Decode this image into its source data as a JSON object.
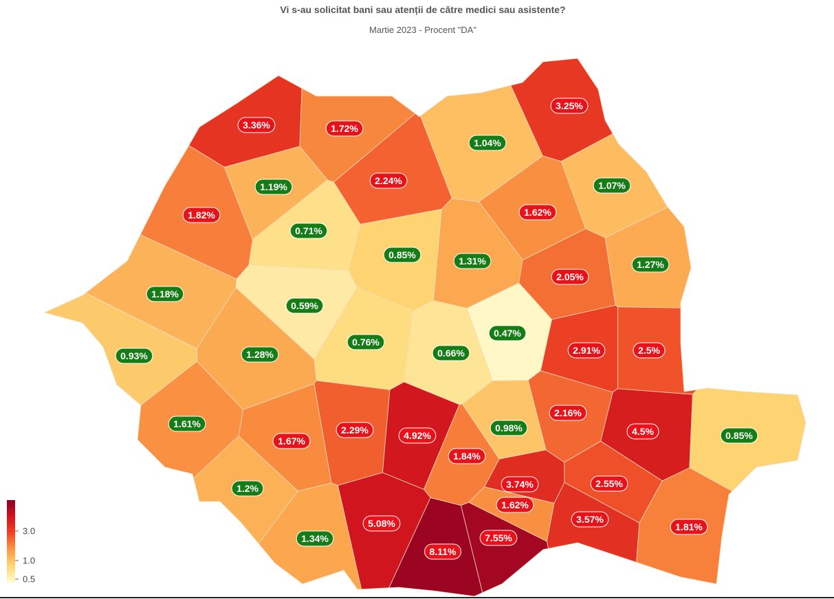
{
  "chart_data": {
    "type": "choropleth",
    "title": "Vi s-au solicitat bani sau atenții de către medici sau asistente?",
    "subtitle": "Martie 2023 - Procent \"DA\"",
    "values": [
      3.36,
      1.72,
      3.25,
      1.04,
      2.24,
      1.19,
      1.07,
      1.82,
      1.62,
      0.71,
      0.85,
      1.31,
      1.27,
      2.05,
      1.18,
      0.59,
      0.47,
      0.76,
      0.66,
      2.91,
      2.5,
      1.28,
      0.93,
      2.16,
      4.5,
      0.85,
      1.61,
      1.67,
      2.29,
      4.92,
      0.98,
      1.84,
      3.74,
      2.55,
      1.62,
      1.2,
      3.57,
      1.81,
      1.34,
      5.08,
      7.55,
      8.11
    ],
    "value_labels": [
      "3.36%",
      "1.72%",
      "3.25%",
      "1.04%",
      "2.24%",
      "1.19%",
      "1.07%",
      "1.82%",
      "1.62%",
      "0.71%",
      "0.85%",
      "1.31%",
      "1.27%",
      "2.05%",
      "1.18%",
      "0.59%",
      "0.47%",
      "0.76%",
      "0.66%",
      "2.91%",
      "2.5%",
      "1.28%",
      "0.93%",
      "2.16%",
      "4.5%",
      "0.85%",
      "1.61%",
      "1.67%",
      "2.29%",
      "4.92%",
      "0.98%",
      "1.84%",
      "3.74%",
      "2.55%",
      "1.62%",
      "1.2%",
      "3.57%",
      "1.81%",
      "1.34%",
      "5.08%",
      "7.55%",
      "8.11%"
    ],
    "label_colors": [
      "#e8121b",
      "#e8121b",
      "#e8121b",
      "#167d16",
      "#e8121b",
      "#167d16",
      "#167d16",
      "#e8121b",
      "#e8121b",
      "#167d16",
      "#167d16",
      "#167d16",
      "#167d16",
      "#e8121b",
      "#167d16",
      "#167d16",
      "#167d16",
      "#167d16",
      "#167d16",
      "#e8121b",
      "#e8121b",
      "#167d16",
      "#167d16",
      "#e8121b",
      "#e8121b",
      "#167d16",
      "#167d16",
      "#e8121b",
      "#e8121b",
      "#e8121b",
      "#167d16",
      "#e8121b",
      "#e8121b",
      "#e8121b",
      "#e8121b",
      "#167d16",
      "#e8121b",
      "#e8121b",
      "#167d16",
      "#e8121b",
      "#e8121b",
      "#e8121b"
    ],
    "log_scale": true,
    "colorlim": [
      0.44,
      9.5
    ],
    "colors": [
      "#fffbd0",
      "#fed876",
      "#fb9a45",
      "#ee4424",
      "#d0141e",
      "#8a0024"
    ],
    "cticks": [
      {
        "value": 3,
        "label": "3.0"
      },
      {
        "value": 1,
        "label": "1.0"
      },
      0.5
    ]
  }
}
